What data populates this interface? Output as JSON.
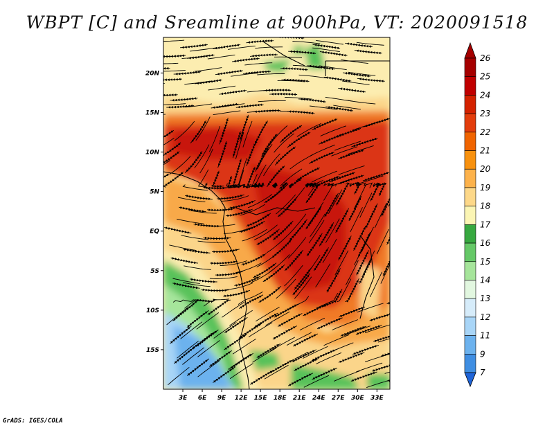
{
  "title": "WBPT [C] and Sreamline at 900hPa, VT: 2020091518",
  "credit": "GrADS: IGES/COLA",
  "map": {
    "lat_labels": [
      "20N",
      "15N",
      "10N",
      "5N",
      "EQ",
      "5S",
      "10S",
      "15S"
    ],
    "lat_values": [
      20,
      15,
      10,
      5,
      0,
      -5,
      -10,
      -15
    ],
    "lon_labels": [
      "3E",
      "6E",
      "9E",
      "12E",
      "15E",
      "18E",
      "21E",
      "24E",
      "27E",
      "30E",
      "33E"
    ],
    "lon_values": [
      3,
      6,
      9,
      12,
      15,
      18,
      21,
      24,
      27,
      30,
      33
    ],
    "lon_range": [
      0,
      35
    ],
    "lat_range": [
      -20,
      24.5
    ]
  },
  "colorbar": {
    "labels": [
      "26",
      "25",
      "24",
      "23",
      "22",
      "21",
      "20",
      "19",
      "18",
      "17",
      "16",
      "15",
      "14",
      "13",
      "12",
      "11",
      "9",
      "7"
    ],
    "colors": [
      "#a50000",
      "#c00000",
      "#d42200",
      "#e33d0c",
      "#f06400",
      "#f8910e",
      "#fdb24b",
      "#fdd889",
      "#fbf5b4",
      "#37a840",
      "#65c867",
      "#a6e59b",
      "#e2f7e0",
      "#d6ecfa",
      "#a8d5f7",
      "#6cb2ee",
      "#3f8ee2",
      "#1f64d8"
    ],
    "top_color": "#a50000",
    "bottom_color": "#1f64d8"
  },
  "colors": {
    "very_hot": "#c8140a",
    "hot": "#db3512",
    "warm": "#f07a25",
    "mild": "#f8a94a",
    "pale": "#fbd58a",
    "cream": "#fcedb0",
    "green": "#59c25a",
    "light_green": "#a6e59b",
    "blue": "#6cb2ee",
    "light_blue": "#a8d5f7"
  }
}
